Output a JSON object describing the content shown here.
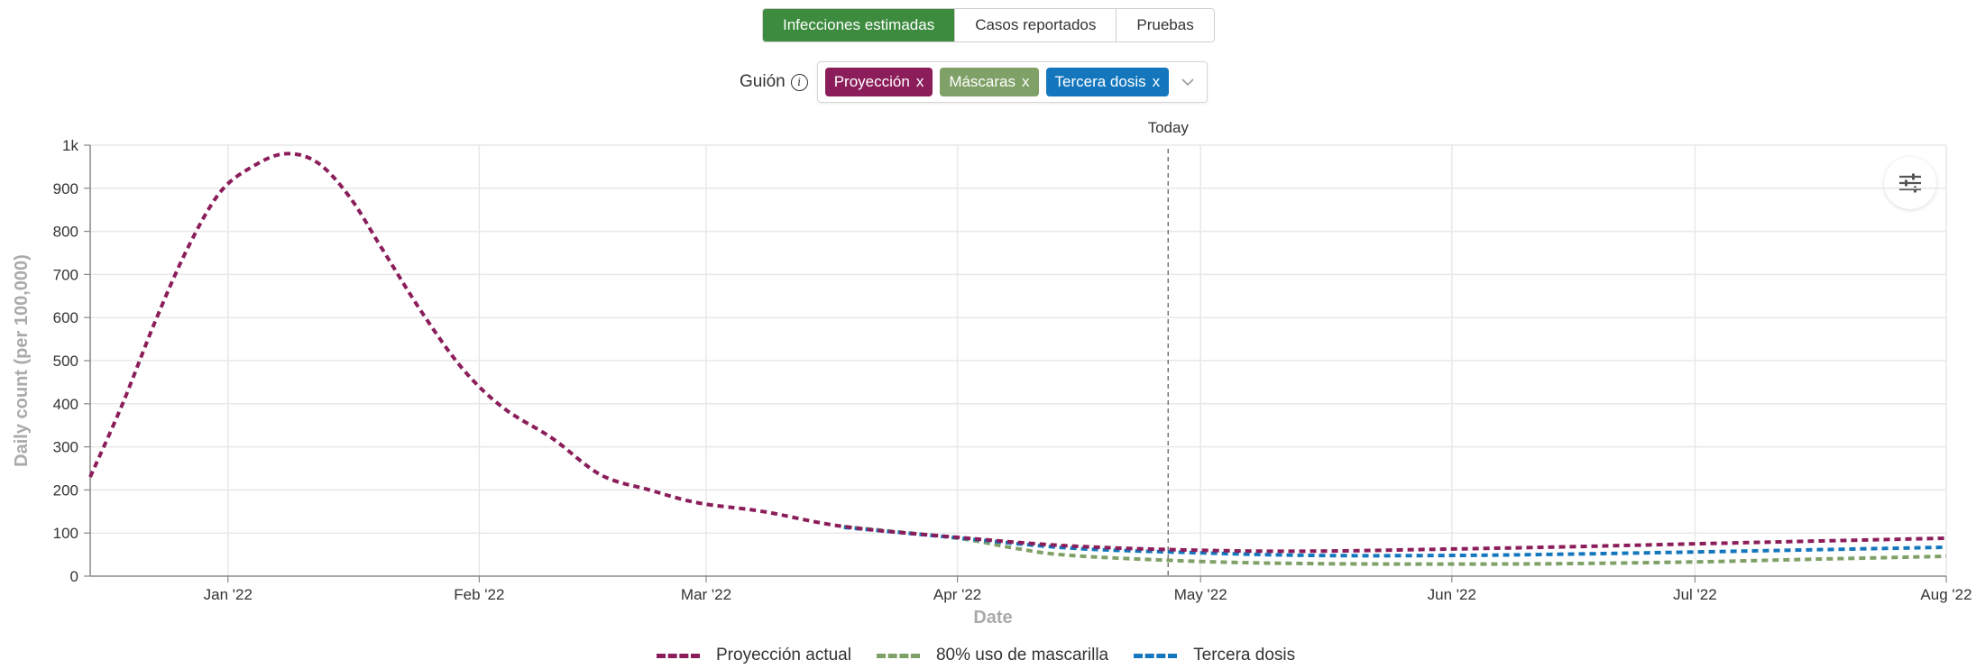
{
  "tabs": {
    "items": [
      {
        "label": "Infecciones estimadas",
        "active": true
      },
      {
        "label": "Casos reportados",
        "active": false
      },
      {
        "label": "Pruebas",
        "active": false
      }
    ]
  },
  "scenario": {
    "label": "Guión",
    "info_icon": "info-circle-icon",
    "chips": [
      {
        "label": "Proyección",
        "color": "#8b1e5a"
      },
      {
        "label": "Máscaras",
        "color": "#7fa067"
      },
      {
        "label": "Tercera dosis",
        "color": "#1477bd"
      }
    ],
    "remove_glyph": "x",
    "dropdown_icon": "chevron-down-icon"
  },
  "settings": {
    "icon": "sliders-icon"
  },
  "chart_data": {
    "type": "line",
    "xlabel": "Date",
    "ylabel": "Daily count (per 100,000)",
    "x_range": [
      "2021-12-15",
      "2022-08-01"
    ],
    "ylim": [
      0,
      1000
    ],
    "y_ticks": [
      0,
      100,
      200,
      300,
      400,
      500,
      600,
      700,
      800,
      900,
      1000
    ],
    "y_tick_labels": [
      "0",
      "100",
      "200",
      "300",
      "400",
      "500",
      "600",
      "700",
      "800",
      "900",
      "1k"
    ],
    "x_ticks": [
      {
        "date": "2022-01-01",
        "label": "Jan '22"
      },
      {
        "date": "2022-02-01",
        "label": "Feb '22"
      },
      {
        "date": "2022-03-01",
        "label": "Mar '22"
      },
      {
        "date": "2022-04-01",
        "label": "Apr '22"
      },
      {
        "date": "2022-05-01",
        "label": "May '22"
      },
      {
        "date": "2022-06-01",
        "label": "Jun '22"
      },
      {
        "date": "2022-07-01",
        "label": "Jul '22"
      },
      {
        "date": "2022-08-01",
        "label": "Aug '22"
      }
    ],
    "grid": true,
    "today": {
      "date": "2022-04-27",
      "label": "Today"
    },
    "legend_position": "bottom",
    "series": [
      {
        "name": "Proyección actual",
        "color": "#8b1e5a",
        "points": [
          [
            "2021-12-15",
            230
          ],
          [
            "2021-12-19",
            400
          ],
          [
            "2021-12-23",
            590
          ],
          [
            "2021-12-27",
            760
          ],
          [
            "2021-12-31",
            890
          ],
          [
            "2022-01-04",
            950
          ],
          [
            "2022-01-08",
            980
          ],
          [
            "2022-01-12",
            960
          ],
          [
            "2022-01-16",
            880
          ],
          [
            "2022-01-20",
            760
          ],
          [
            "2022-01-25",
            610
          ],
          [
            "2022-01-30",
            480
          ],
          [
            "2022-02-04",
            390
          ],
          [
            "2022-02-10",
            320
          ],
          [
            "2022-02-16",
            235
          ],
          [
            "2022-02-22",
            200
          ],
          [
            "2022-02-28",
            170
          ],
          [
            "2022-03-08",
            150
          ],
          [
            "2022-03-18",
            115
          ],
          [
            "2022-04-01",
            90
          ],
          [
            "2022-04-15",
            70
          ],
          [
            "2022-05-01",
            60
          ],
          [
            "2022-05-15",
            58
          ],
          [
            "2022-06-01",
            63
          ],
          [
            "2022-06-15",
            68
          ],
          [
            "2022-07-01",
            75
          ],
          [
            "2022-07-15",
            81
          ],
          [
            "2022-08-01",
            88
          ]
        ]
      },
      {
        "name": "80% uso de mascarilla",
        "color": "#7fa067",
        "points": [
          [
            "2022-03-18",
            115
          ],
          [
            "2022-04-01",
            88
          ],
          [
            "2022-04-08",
            65
          ],
          [
            "2022-04-15",
            48
          ],
          [
            "2022-05-01",
            34
          ],
          [
            "2022-05-15",
            29
          ],
          [
            "2022-06-01",
            28
          ],
          [
            "2022-06-15",
            29
          ],
          [
            "2022-07-01",
            33
          ],
          [
            "2022-07-15",
            39
          ],
          [
            "2022-08-01",
            46
          ]
        ]
      },
      {
        "name": "Tercera dosis",
        "color": "#1477bd",
        "points": [
          [
            "2022-03-18",
            113
          ],
          [
            "2022-04-01",
            89
          ],
          [
            "2022-04-15",
            65
          ],
          [
            "2022-05-01",
            54
          ],
          [
            "2022-05-15",
            48
          ],
          [
            "2022-06-01",
            48
          ],
          [
            "2022-06-15",
            51
          ],
          [
            "2022-07-01",
            56
          ],
          [
            "2022-07-15",
            61
          ],
          [
            "2022-08-01",
            67
          ]
        ]
      }
    ]
  }
}
